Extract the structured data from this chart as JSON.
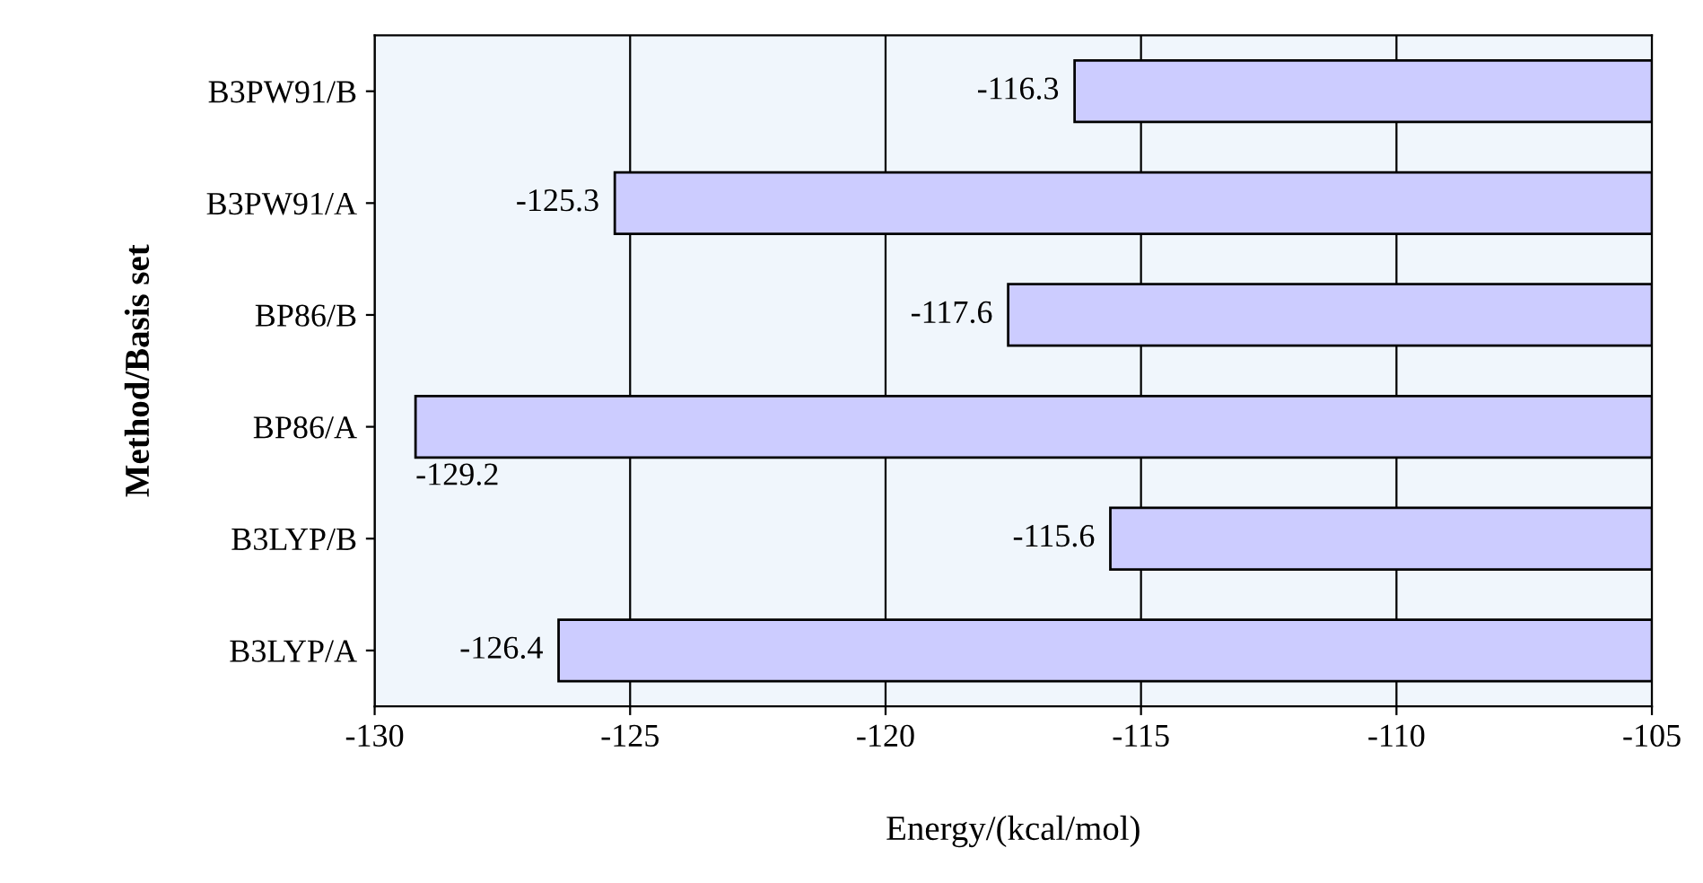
{
  "chart_data": {
    "type": "bar",
    "orientation": "horizontal",
    "xlabel": "Energy/(kcal/mol)",
    "ylabel": "Method/Basis set",
    "categories": [
      "B3PW91/B",
      "B3PW91/A",
      "BP86/B",
      "BP86/A",
      "B3LYP/B",
      "B3LYP/A"
    ],
    "values": [
      -116.3,
      -125.3,
      -117.6,
      -129.2,
      -115.6,
      -126.4
    ],
    "color": "#ccccff",
    "xlim": [
      -130,
      -105
    ],
    "xticks": [
      -130,
      -125,
      -120,
      -115,
      -110,
      -105
    ],
    "grid": "x",
    "data_labels": true,
    "legend": false
  }
}
